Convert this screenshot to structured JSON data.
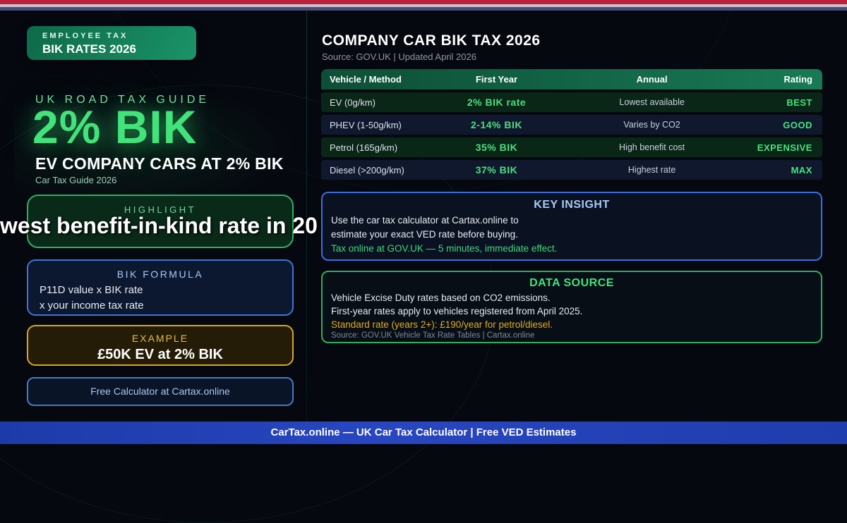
{
  "badge": {
    "line1": "EMPLOYEE TAX",
    "line2": "BIK RATES 2026"
  },
  "hero": {
    "kicker": "UK ROAD TAX GUIDE",
    "headline": "2% BIK",
    "subheadline": "EV COMPANY CARS AT 2% BIK",
    "tagline": "Car Tax Guide 2026"
  },
  "highlight": {
    "label": "HIGHLIGHT",
    "text": "west benefit-in-kind rate in 20"
  },
  "formula": {
    "label": "BIK FORMULA",
    "line1": "P11D value x BIK rate",
    "line2": "x your income tax rate"
  },
  "example": {
    "label": "EXAMPLE",
    "value": "£50K EV at 2% BIK"
  },
  "calculator_link": {
    "text": "Free Calculator at Cartax.online"
  },
  "table": {
    "title": "COMPANY CAR BIK TAX 2026",
    "source": "Source: GOV.UK | Updated April 2026",
    "columns": {
      "c1": "Vehicle / Method",
      "c2": "First Year",
      "c3": "Annual",
      "c4": "Rating"
    },
    "rows": [
      {
        "vehicle": "EV (0g/km)",
        "first_year": "2% BIK rate",
        "annual": "Lowest available",
        "rating": "BEST"
      },
      {
        "vehicle": "PHEV (1-50g/km)",
        "first_year": "2-14% BIK",
        "annual": "Varies by CO2",
        "rating": "GOOD"
      },
      {
        "vehicle": "Petrol (165g/km)",
        "first_year": "35% BIK",
        "annual": "High benefit cost",
        "rating": "EXPENSIVE"
      },
      {
        "vehicle": "Diesel (>200g/km)",
        "first_year": "37% BIK",
        "annual": "Highest rate",
        "rating": "MAX"
      }
    ]
  },
  "key_insight": {
    "title": "KEY INSIGHT",
    "line1": "Use the car tax calculator at Cartax.online to",
    "line2": "estimate your exact VED rate before buying.",
    "line3": "Tax online at GOV.UK — 5 minutes, immediate effect."
  },
  "data_source": {
    "title": "DATA SOURCE",
    "line1": "Vehicle Excise Duty rates based on CO2 emissions.",
    "line2": "First-year rates apply to vehicles registered from April 2025.",
    "line3": "Standard rate (years 2+): £190/year for petrol/diesel.",
    "credit": "Source: GOV.UK Vehicle Tax Rate Tables | Cartax.online"
  },
  "footer": {
    "text": "CarTax.online — UK Car Tax Calculator | Free VED Estimates"
  },
  "colors": {
    "accent_green": "#3ee87e",
    "accent_blue": "#3c6ee2",
    "accent_gold": "#d9a81e",
    "badge_green": "#158a60",
    "footer_blue": "#2443b5",
    "stripe_red": "#c0213a",
    "stripe_slate": "#4c4c78",
    "background": "#05080f"
  }
}
